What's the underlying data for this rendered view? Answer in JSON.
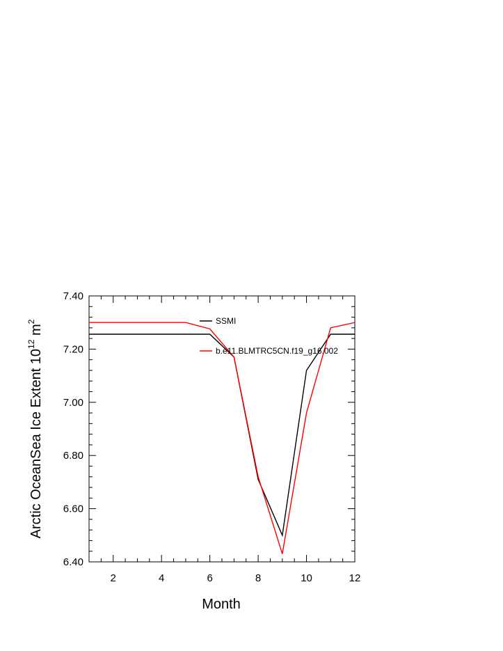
{
  "chart_data": {
    "type": "line",
    "xlabel": "Month",
    "ylabel_main": "Arctic OceanSea Ice Extent 10",
    "ylabel_sup": "12",
    "ylabel_unit": " m",
    "ylabel_unit_sup": "2",
    "xlim": [
      1,
      12
    ],
    "ylim": [
      6.4,
      7.4
    ],
    "x_ticks": [
      2,
      4,
      6,
      8,
      10,
      12
    ],
    "x_tick_labels": [
      "2",
      "4",
      "6",
      "8",
      "10",
      "12"
    ],
    "y_ticks": [
      6.4,
      6.6,
      6.8,
      7.0,
      7.2,
      7.4
    ],
    "y_tick_labels": [
      "6.40",
      "6.60",
      "6.80",
      "7.00",
      "7.20",
      "7.40"
    ],
    "grid": false,
    "legend_position": "top-right",
    "series": [
      {
        "name": "SSMI",
        "color": "#000000",
        "x": [
          1,
          2,
          3,
          4,
          5,
          6,
          7,
          8,
          9,
          10,
          11,
          12
        ],
        "y": [
          7.256,
          7.256,
          7.256,
          7.256,
          7.256,
          7.256,
          7.17,
          6.71,
          6.5,
          7.12,
          7.256,
          7.256
        ]
      },
      {
        "name": "b.e11.BLMTRC5CN.f19_g16.002",
        "color": "#ff0000",
        "x": [
          1,
          2,
          3,
          4,
          5,
          6,
          7,
          8,
          9,
          10,
          11,
          12
        ],
        "y": [
          7.3,
          7.3,
          7.3,
          7.3,
          7.3,
          7.276,
          7.17,
          6.72,
          6.43,
          6.96,
          7.28,
          7.3
        ]
      }
    ]
  }
}
